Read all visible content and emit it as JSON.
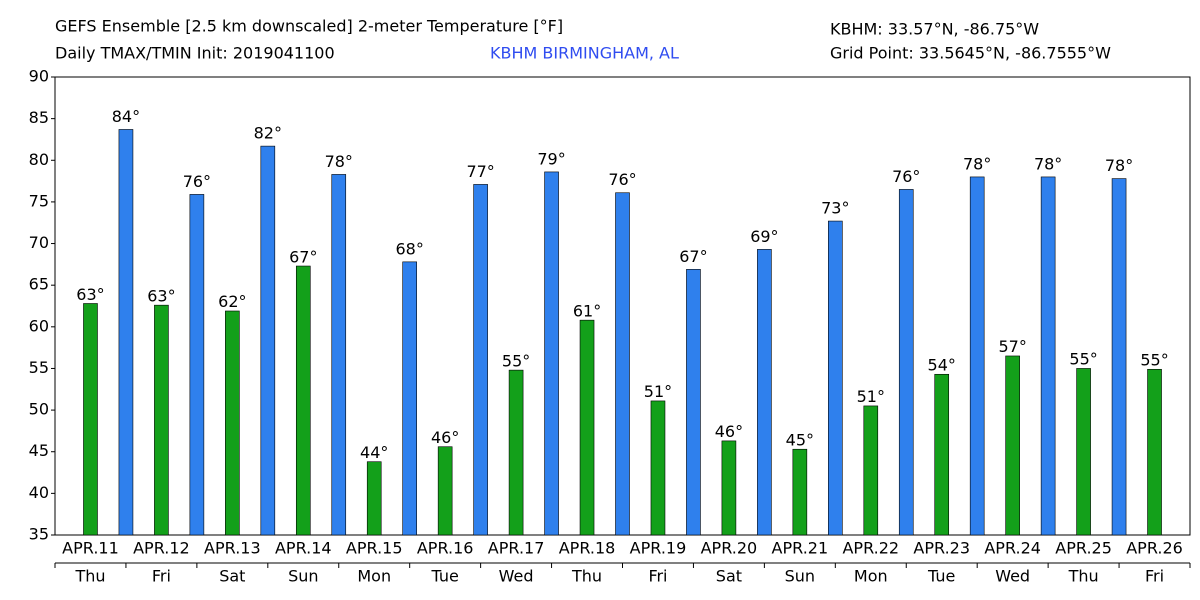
{
  "chart_data": {
    "type": "bar",
    "title": "GEFS Ensemble [2.5 km downscaled] 2-meter Temperature [°F]",
    "subtitle": "Daily TMAX/TMIN Init: 2019041100",
    "station": "KBHM BIRMINGHAM, AL",
    "location": "KBHM: 33.57°N, -86.75°W",
    "grid_point": "Grid Point: 33.5645°N, -86.7555°W",
    "categories": [
      "APR.11",
      "APR.12",
      "APR.13",
      "APR.14",
      "APR.15",
      "APR.16",
      "APR.17",
      "APR.18",
      "APR.19",
      "APR.20",
      "APR.21",
      "APR.22",
      "APR.23",
      "APR.24",
      "APR.25",
      "APR.26"
    ],
    "weekdays": [
      "Thu",
      "Fri",
      "Sat",
      "Sun",
      "Mon",
      "Tue",
      "Wed",
      "Thu",
      "Fri",
      "Sat",
      "Sun",
      "Mon",
      "Tue",
      "Wed",
      "Thu",
      "Fri"
    ],
    "series": [
      {
        "name": "TMIN",
        "color": "#13a01a",
        "offset": 0,
        "label_size": 15,
        "values": [
          62.8,
          62.6,
          61.9,
          67.3,
          43.8,
          45.6,
          54.8,
          60.8,
          51.1,
          46.3,
          45.3,
          50.5,
          54.3,
          56.5,
          55.0,
          54.9
        ],
        "value_labels": [
          "63°",
          "63°",
          "62°",
          "67°",
          "44°",
          "46°",
          "55°",
          "61°",
          "51°",
          "46°",
          "45°",
          "51°",
          "54°",
          "57°",
          "55°",
          "55°"
        ]
      },
      {
        "name": "TMAX",
        "color": "#2f80ed",
        "offset": -0.5,
        "label_size": 22,
        "values": [
          null,
          83.7,
          75.9,
          81.7,
          78.3,
          67.8,
          77.1,
          78.6,
          76.1,
          66.9,
          69.3,
          72.7,
          76.5,
          78.0,
          78.0,
          77.8
        ],
        "value_labels": [
          null,
          "84°",
          "76°",
          "82°",
          "78°",
          "68°",
          "77°",
          "79°",
          "76°",
          "67°",
          "69°",
          "73°",
          "76°",
          "78°",
          "78°",
          "78°"
        ]
      }
    ],
    "ylim": [
      35,
      90
    ],
    "yticks": [
      35,
      40,
      45,
      50,
      55,
      60,
      65,
      70,
      75,
      80,
      85,
      90
    ]
  }
}
